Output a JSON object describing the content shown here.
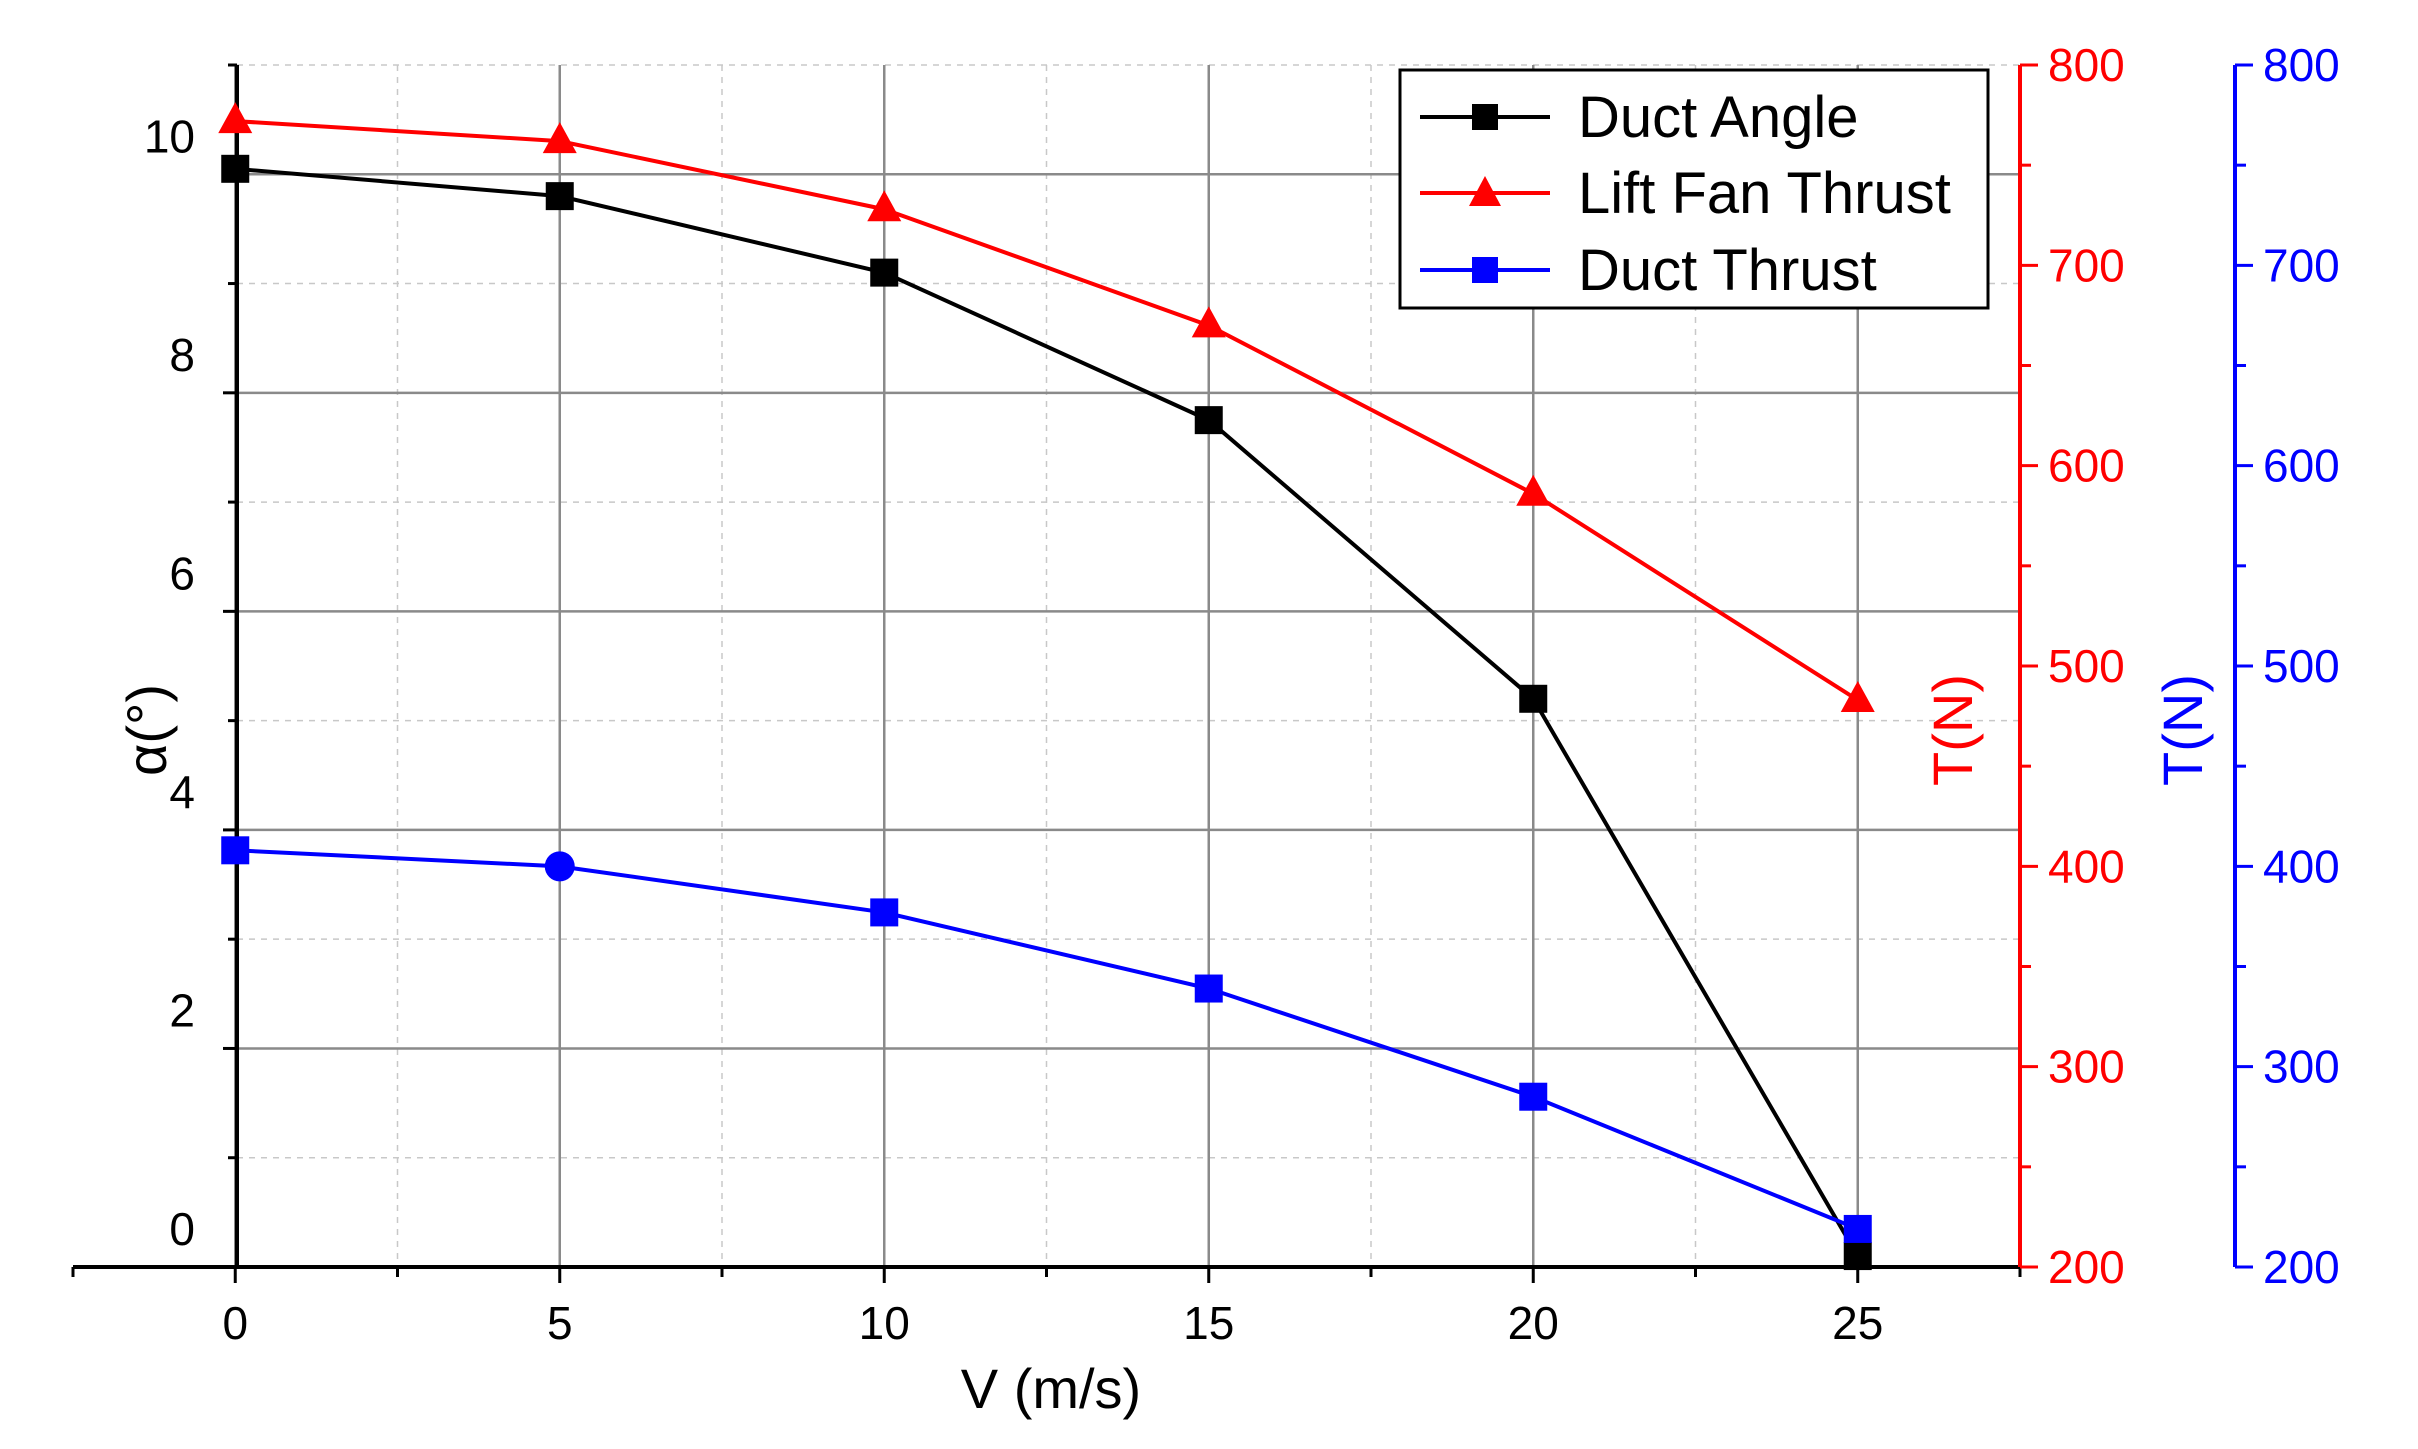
{
  "chart_data": {
    "type": "line",
    "title": "",
    "xlabel": "V (m/s)",
    "x": [
      0,
      5,
      10,
      15,
      20,
      25
    ],
    "xlim": [
      -2.5,
      27.5
    ],
    "xticks": [
      "0",
      "5",
      "10",
      "15",
      "20",
      "25"
    ],
    "grid": true,
    "axes": {
      "left": {
        "label": "α(°)",
        "ylim": [
          0,
          11
        ],
        "ticks": [
          "0",
          "2",
          "4",
          "6",
          "8",
          "10"
        ],
        "color": "#000000"
      },
      "right1": {
        "label": "T(N)",
        "ylim": [
          200,
          800
        ],
        "ticks": [
          "200",
          "300",
          "400",
          "500",
          "600",
          "700",
          "800"
        ],
        "color": "#ff0000"
      },
      "right2": {
        "label": "T(N)",
        "ylim": [
          200,
          800
        ],
        "ticks": [
          "200",
          "300",
          "400",
          "500",
          "600",
          "700",
          "800"
        ],
        "color": "#0000ff"
      }
    },
    "series": [
      {
        "name": "Duct Angle",
        "axis": "left",
        "color": "#000000",
        "marker": "square",
        "values": [
          10.05,
          9.8,
          9.1,
          7.75,
          5.2,
          0.1
        ]
      },
      {
        "name": "Lift Fan Thrust",
        "axis": "right1",
        "color": "#ff0000",
        "marker": "triangle",
        "values": [
          772,
          762,
          728,
          670,
          586,
          483
        ]
      },
      {
        "name": "Duct Thrust",
        "axis": "right2",
        "color": "#0000ff",
        "marker": "square",
        "values": [
          408,
          400,
          377,
          339,
          285,
          219
        ]
      }
    ],
    "legend_position": "top-right"
  }
}
